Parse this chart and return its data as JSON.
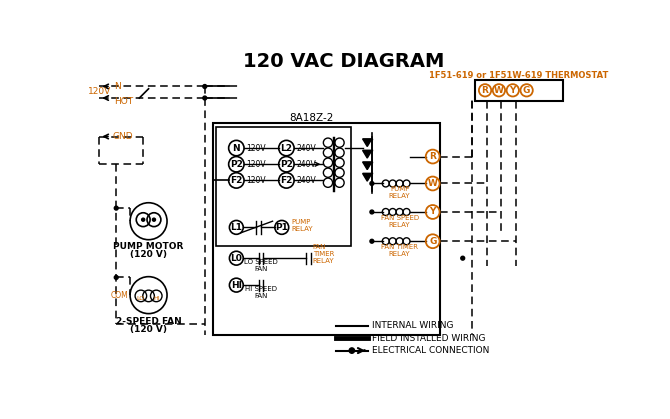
{
  "title": "120 VAC DIAGRAM",
  "bg_color": "#ffffff",
  "orange": "#cc6600",
  "black": "#000000",
  "thermostat_label": "1F51-619 or 1F51W-619 THERMOSTAT",
  "controller_label": "8A18Z-2",
  "terminal_labels": [
    "R",
    "W",
    "Y",
    "G"
  ],
  "node_labels_left": [
    "N",
    "P2",
    "F2"
  ],
  "node_labels_right": [
    "L2",
    "P2",
    "F2"
  ],
  "node_voltages_left": [
    "120V",
    "120V",
    "120V"
  ],
  "node_voltages_right": [
    "240V",
    "240V",
    "240V"
  ],
  "pump_motor_label": "PUMP MOTOR",
  "pump_motor_v": "(120 V)",
  "fan_label": "2-SPEED FAN",
  "fan_v": "(120 V)",
  "com_label": "COM",
  "lo_label": "LO",
  "hi_label": "HI",
  "legend": [
    "INTERNAL WIRING",
    "FIELD INSTALLED WIRING",
    "ELECTRICAL CONNECTION"
  ]
}
